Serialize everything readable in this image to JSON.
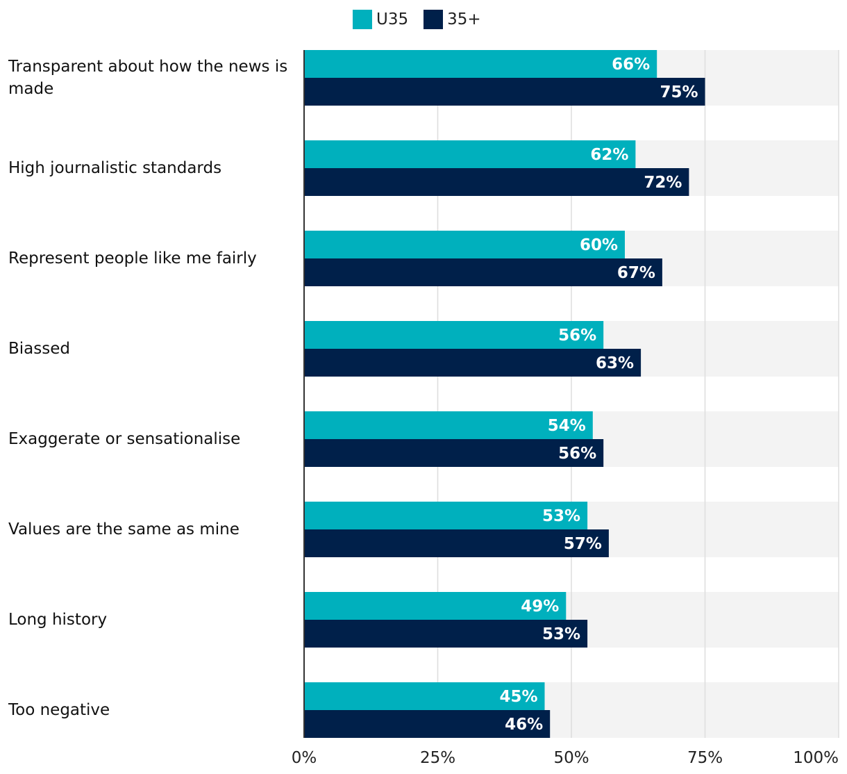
{
  "chart_data": {
    "type": "bar",
    "orientation": "horizontal",
    "categories": [
      "Transparent about how the news is made",
      "High journalistic standards",
      "Represent people like me fairly",
      "Biassed",
      "Exaggerate or sensationalise",
      "Values are the same as mine",
      "Long history",
      "Too negative"
    ],
    "series": [
      {
        "name": "U35",
        "color": "#00b0bd",
        "values": [
          66,
          62,
          60,
          56,
          54,
          53,
          49,
          45
        ]
      },
      {
        "name": "35+",
        "color": "#00204a",
        "values": [
          75,
          72,
          67,
          63,
          56,
          57,
          53,
          46
        ]
      }
    ],
    "value_suffix": "%",
    "xlim": [
      0,
      100
    ],
    "ticks": [
      "0%",
      "25%",
      "50%",
      "75%",
      "100%"
    ],
    "tick_values": [
      0,
      25,
      50,
      75,
      100
    ],
    "legend_position": "top-center",
    "grid": true,
    "title": "",
    "xlabel": "",
    "ylabel": ""
  }
}
